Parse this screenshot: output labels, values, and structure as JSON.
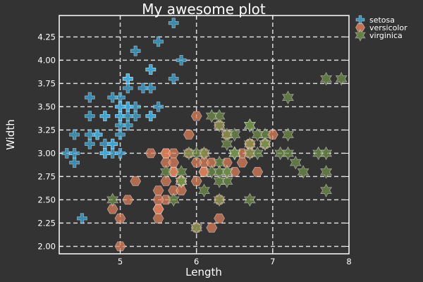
{
  "chart_data": {
    "type": "scatter",
    "title": "My awesome plot",
    "xlabel": "Length",
    "ylabel": "Width",
    "xlim": [
      4.2,
      8.0
    ],
    "ylim": [
      1.92,
      4.48
    ],
    "xticks": [
      5,
      6,
      7,
      8
    ],
    "yticks": [
      2.0,
      2.25,
      2.5,
      2.75,
      3.0,
      3.25,
      3.5,
      3.75,
      4.0,
      4.25
    ],
    "ytick_labels": [
      "2.00",
      "2.25",
      "2.50",
      "2.75",
      "3.00",
      "3.25",
      "3.50",
      "3.75",
      "4.00",
      "4.25"
    ],
    "grid": true,
    "legend_position": "outside-top-right",
    "series": [
      {
        "name": "setosa",
        "marker": "cross",
        "color": "#3aaee0",
        "points": [
          [
            5.1,
            3.5
          ],
          [
            4.9,
            3.0
          ],
          [
            4.7,
            3.2
          ],
          [
            4.6,
            3.1
          ],
          [
            5.0,
            3.6
          ],
          [
            5.4,
            3.9
          ],
          [
            4.6,
            3.4
          ],
          [
            5.0,
            3.4
          ],
          [
            4.4,
            2.9
          ],
          [
            4.9,
            3.1
          ],
          [
            5.4,
            3.7
          ],
          [
            4.8,
            3.4
          ],
          [
            4.8,
            3.0
          ],
          [
            4.3,
            3.0
          ],
          [
            5.8,
            4.0
          ],
          [
            5.7,
            4.4
          ],
          [
            5.4,
            3.9
          ],
          [
            5.1,
            3.5
          ],
          [
            5.7,
            3.8
          ],
          [
            5.1,
            3.8
          ],
          [
            5.4,
            3.4
          ],
          [
            5.1,
            3.7
          ],
          [
            4.6,
            3.6
          ],
          [
            5.1,
            3.3
          ],
          [
            4.8,
            3.4
          ],
          [
            5.0,
            3.0
          ],
          [
            5.0,
            3.4
          ],
          [
            5.2,
            3.5
          ],
          [
            5.2,
            3.4
          ],
          [
            4.7,
            3.2
          ],
          [
            4.8,
            3.1
          ],
          [
            5.4,
            3.4
          ],
          [
            5.2,
            4.1
          ],
          [
            5.5,
            4.2
          ],
          [
            4.9,
            3.1
          ],
          [
            5.0,
            3.2
          ],
          [
            5.5,
            3.5
          ],
          [
            4.9,
            3.6
          ],
          [
            4.4,
            3.0
          ],
          [
            5.1,
            3.4
          ],
          [
            5.0,
            3.5
          ],
          [
            4.5,
            2.3
          ],
          [
            4.4,
            3.2
          ],
          [
            5.0,
            3.5
          ],
          [
            5.1,
            3.8
          ],
          [
            4.8,
            3.0
          ],
          [
            5.1,
            3.8
          ],
          [
            4.6,
            3.2
          ],
          [
            5.3,
            3.7
          ],
          [
            5.0,
            3.3
          ]
        ]
      },
      {
        "name": "versicolor",
        "marker": "hexagon",
        "color": "#e2825c",
        "points": [
          [
            7.0,
            3.2
          ],
          [
            6.4,
            3.2
          ],
          [
            6.9,
            3.1
          ],
          [
            5.5,
            2.3
          ],
          [
            6.5,
            2.8
          ],
          [
            5.7,
            2.8
          ],
          [
            6.3,
            3.3
          ],
          [
            4.9,
            2.4
          ],
          [
            6.6,
            2.9
          ],
          [
            5.2,
            2.7
          ],
          [
            5.0,
            2.0
          ],
          [
            5.9,
            3.0
          ],
          [
            6.0,
            2.2
          ],
          [
            6.1,
            2.9
          ],
          [
            5.6,
            2.9
          ],
          [
            6.7,
            3.1
          ],
          [
            5.6,
            3.0
          ],
          [
            5.8,
            2.7
          ],
          [
            6.2,
            2.2
          ],
          [
            5.6,
            2.5
          ],
          [
            5.9,
            3.2
          ],
          [
            6.1,
            2.8
          ],
          [
            6.3,
            2.5
          ],
          [
            6.1,
            2.8
          ],
          [
            6.4,
            2.9
          ],
          [
            6.6,
            3.0
          ],
          [
            6.8,
            2.8
          ],
          [
            6.7,
            3.0
          ],
          [
            6.0,
            2.9
          ],
          [
            5.7,
            2.6
          ],
          [
            5.5,
            2.4
          ],
          [
            5.5,
            2.4
          ],
          [
            5.8,
            2.7
          ],
          [
            6.0,
            2.7
          ],
          [
            5.4,
            3.0
          ],
          [
            6.0,
            3.4
          ],
          [
            6.7,
            3.1
          ],
          [
            6.3,
            2.3
          ],
          [
            5.6,
            3.0
          ],
          [
            5.5,
            2.5
          ],
          [
            5.5,
            2.6
          ],
          [
            6.1,
            3.0
          ],
          [
            5.8,
            2.6
          ],
          [
            5.0,
            2.3
          ],
          [
            5.6,
            2.7
          ],
          [
            5.7,
            3.0
          ],
          [
            5.7,
            2.9
          ],
          [
            6.2,
            2.9
          ],
          [
            5.1,
            2.5
          ],
          [
            5.7,
            2.8
          ]
        ]
      },
      {
        "name": "virginica",
        "marker": "star6",
        "color": "#73924a",
        "points": [
          [
            6.3,
            3.3
          ],
          [
            5.8,
            2.7
          ],
          [
            7.1,
            3.0
          ],
          [
            6.3,
            2.9
          ],
          [
            6.5,
            3.0
          ],
          [
            7.6,
            3.0
          ],
          [
            4.9,
            2.5
          ],
          [
            7.3,
            2.9
          ],
          [
            6.7,
            2.5
          ],
          [
            7.2,
            3.6
          ],
          [
            6.5,
            3.2
          ],
          [
            6.4,
            2.7
          ],
          [
            6.8,
            3.0
          ],
          [
            5.7,
            2.5
          ],
          [
            5.8,
            2.8
          ],
          [
            6.4,
            3.2
          ],
          [
            6.5,
            3.0
          ],
          [
            7.7,
            3.8
          ],
          [
            7.7,
            2.6
          ],
          [
            6.0,
            2.2
          ],
          [
            6.9,
            3.2
          ],
          [
            5.6,
            2.8
          ],
          [
            7.7,
            2.8
          ],
          [
            6.3,
            2.7
          ],
          [
            6.7,
            3.3
          ],
          [
            7.2,
            3.2
          ],
          [
            6.2,
            2.8
          ],
          [
            6.1,
            3.0
          ],
          [
            6.4,
            2.8
          ],
          [
            7.2,
            3.0
          ],
          [
            7.4,
            2.8
          ],
          [
            7.9,
            3.8
          ],
          [
            6.4,
            2.8
          ],
          [
            6.3,
            2.8
          ],
          [
            6.1,
            2.6
          ],
          [
            7.7,
            3.0
          ],
          [
            6.3,
            3.4
          ],
          [
            6.4,
            3.1
          ],
          [
            6.0,
            3.0
          ],
          [
            6.9,
            3.1
          ],
          [
            6.7,
            3.1
          ],
          [
            6.9,
            3.1
          ],
          [
            5.8,
            2.7
          ],
          [
            6.8,
            3.2
          ],
          [
            6.7,
            3.3
          ],
          [
            6.7,
            3.0
          ],
          [
            6.3,
            2.5
          ],
          [
            6.5,
            3.0
          ],
          [
            6.2,
            3.4
          ],
          [
            5.9,
            3.0
          ]
        ]
      }
    ]
  }
}
